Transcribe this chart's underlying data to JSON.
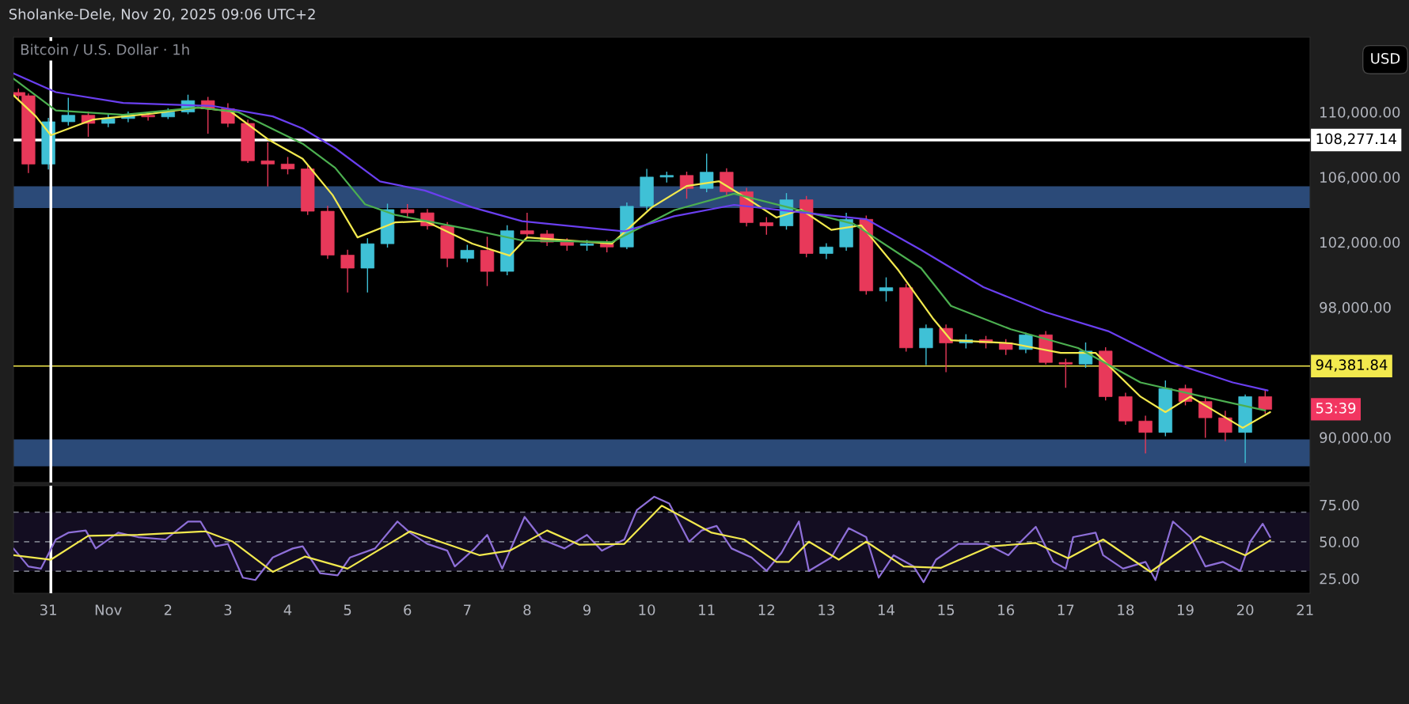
{
  "chart_data": [
    {
      "type": "candlestick",
      "title": "Bitcoin / U.S. Dollar · 1h",
      "subtitle": "Sholanke-Dele, Nov 20, 2025 09:06 UTC+2",
      "x": [
        "2025-10-30T12:00",
        "2025-10-30T16:00",
        "2025-10-31T00:00",
        "2025-10-31T08:00",
        "2025-10-31T16:00",
        "2025-11-01T00:00",
        "2025-11-01T08:00",
        "2025-11-01T16:00",
        "2025-11-02T00:00",
        "2025-11-02T08:00",
        "2025-11-02T16:00",
        "2025-11-03T00:00",
        "2025-11-03T08:00",
        "2025-11-03T16:00",
        "2025-11-04T00:00",
        "2025-11-04T08:00",
        "2025-11-04T16:00",
        "2025-11-05T00:00",
        "2025-11-05T08:00",
        "2025-11-05T16:00",
        "2025-11-06T00:00",
        "2025-11-06T08:00",
        "2025-11-06T16:00",
        "2025-11-07T00:00",
        "2025-11-07T08:00",
        "2025-11-07T16:00",
        "2025-11-08T00:00",
        "2025-11-08T08:00",
        "2025-11-08T16:00",
        "2025-11-09T00:00",
        "2025-11-09T08:00",
        "2025-11-09T16:00",
        "2025-11-10T00:00",
        "2025-11-10T08:00",
        "2025-11-10T16:00",
        "2025-11-11T00:00",
        "2025-11-11T08:00",
        "2025-11-11T16:00",
        "2025-11-12T00:00",
        "2025-11-12T08:00",
        "2025-11-12T16:00",
        "2025-11-13T00:00",
        "2025-11-13T08:00",
        "2025-11-13T16:00",
        "2025-11-14T00:00",
        "2025-11-14T08:00",
        "2025-11-14T16:00",
        "2025-11-15T00:00",
        "2025-11-15T08:00",
        "2025-11-15T16:00",
        "2025-11-16T00:00",
        "2025-11-16T08:00",
        "2025-11-16T16:00",
        "2025-11-17T00:00",
        "2025-11-17T08:00",
        "2025-11-17T16:00",
        "2025-11-18T00:00",
        "2025-11-18T08:00",
        "2025-11-18T16:00",
        "2025-11-19T00:00",
        "2025-11-19T08:00",
        "2025-11-19T16:00",
        "2025-11-20T00:00",
        "2025-11-20T08:00"
      ],
      "ohlc": [
        [
          111200,
          111400,
          110700,
          111000
        ],
        [
          111000,
          111100,
          106280,
          106800
        ],
        [
          106800,
          109600,
          106500,
          109400
        ],
        [
          109400,
          110850,
          109200,
          109800
        ],
        [
          109800,
          110000,
          108510,
          109300
        ],
        [
          109300,
          109800,
          109100,
          109600
        ],
        [
          109600,
          110000,
          109400,
          109800
        ],
        [
          109800,
          110000,
          109500,
          109700
        ],
        [
          109700,
          110200,
          109600,
          110000
        ],
        [
          110000,
          111030,
          109900,
          110700
        ],
        [
          110700,
          110900,
          108700,
          110200
        ],
        [
          110200,
          110500,
          109100,
          109300
        ],
        [
          109300,
          109500,
          106900,
          107000
        ],
        [
          107000,
          108100,
          105450,
          106800
        ],
        [
          106800,
          107200,
          106200,
          106500
        ],
        [
          106500,
          106700,
          103700,
          103900
        ],
        [
          103900,
          104200,
          101000,
          101200
        ],
        [
          101200,
          101500,
          98940,
          100400
        ],
        [
          100400,
          102200,
          98940,
          101900
        ],
        [
          101900,
          104330,
          101700,
          104000
        ],
        [
          104000,
          104300,
          103500,
          103800
        ],
        [
          103800,
          104000,
          102800,
          103000
        ],
        [
          103000,
          103200,
          100500,
          101000
        ],
        [
          101000,
          101800,
          100800,
          101500
        ],
        [
          101500,
          102300,
          99330,
          100200
        ],
        [
          100200,
          103000,
          100000,
          102700
        ],
        [
          102700,
          103770,
          102300,
          102500
        ],
        [
          102500,
          102700,
          101800,
          102000
        ],
        [
          102000,
          102200,
          101500,
          101800
        ],
        [
          101800,
          102100,
          101500,
          101900
        ],
        [
          101900,
          102100,
          101400,
          101700
        ],
        [
          101700,
          104400,
          101600,
          104200
        ],
        [
          104200,
          106470,
          104000,
          106000
        ],
        [
          106000,
          106300,
          105700,
          106100
        ],
        [
          106100,
          106300,
          104700,
          105300
        ],
        [
          105300,
          107400,
          105100,
          106300
        ],
        [
          106300,
          106500,
          104900,
          105100
        ],
        [
          105100,
          105300,
          103000,
          103200
        ],
        [
          103200,
          103500,
          102490,
          103000
        ],
        [
          103000,
          104980,
          102800,
          104600
        ],
        [
          104600,
          104800,
          101100,
          101300
        ],
        [
          101300,
          101900,
          100990,
          101700
        ],
        [
          101700,
          103770,
          101500,
          103400
        ],
        [
          103400,
          103600,
          98800,
          99000
        ],
        [
          99000,
          99800,
          98380,
          99200
        ],
        [
          99200,
          99400,
          95300,
          95500
        ],
        [
          95500,
          96900,
          94470,
          96700
        ],
        [
          96700,
          96900,
          94040,
          95800
        ],
        [
          95800,
          96300,
          95500,
          96000
        ],
        [
          96000,
          96200,
          95500,
          95800
        ],
        [
          95800,
          96000,
          95100,
          95400
        ],
        [
          95400,
          96400,
          95200,
          96300
        ],
        [
          96300,
          96500,
          94500,
          94600
        ],
        [
          94600,
          94800,
          93080,
          94500
        ],
        [
          94500,
          95800,
          94300,
          95300
        ],
        [
          95300,
          95500,
          92300,
          92500
        ],
        [
          92500,
          92700,
          90800,
          91000
        ],
        [
          91000,
          91300,
          89040,
          90300
        ],
        [
          90300,
          93460,
          90100,
          93000
        ],
        [
          93000,
          93200,
          92000,
          92200
        ],
        [
          92200,
          92400,
          90000,
          91200
        ],
        [
          91200,
          91600,
          89800,
          90300
        ],
        [
          90300,
          92600,
          88460,
          92500
        ],
        [
          92500,
          92880,
          91500,
          91720
        ]
      ],
      "series": [
        {
          "type": "line",
          "color": "#f2e94e",
          "x": [
            "2025-10-30T10:00",
            "2025-10-30T19:00",
            "2025-10-31T01:00",
            "2025-10-31T18:00",
            "2025-11-01T18:00",
            "2025-11-02T12:00",
            "2025-11-03T01:00",
            "2025-11-03T16:00",
            "2025-11-04T06:00",
            "2025-11-04T18:00",
            "2025-11-05T04:00",
            "2025-11-05T19:00",
            "2025-11-06T07:00",
            "2025-11-07T02:00",
            "2025-11-07T17:00",
            "2025-11-08T00:00",
            "2025-11-09T10:00",
            "2025-11-10T02:00",
            "2025-11-10T16:00",
            "2025-11-11T05:00",
            "2025-11-11T16:00",
            "2025-11-12T04:00",
            "2025-11-12T14:00",
            "2025-11-13T02:00",
            "2025-11-13T14:00",
            "2025-11-14T05:00",
            "2025-11-14T19:00",
            "2025-11-15T02:00",
            "2025-11-16T02:00",
            "2025-11-16T22:00",
            "2025-11-17T12:00",
            "2025-11-18T06:00",
            "2025-11-18T16:00",
            "2025-11-19T02:00",
            "2025-11-19T23:00",
            "2025-11-20T10:00"
          ],
          "values": [
            111030,
            109730,
            108570,
            109540,
            109910,
            110280,
            110040,
            108330,
            107120,
            104890,
            102290,
            103210,
            103300,
            101910,
            101170,
            102290,
            101910,
            104140,
            105450,
            105740,
            104700,
            103510,
            103990,
            102750,
            103030,
            100250,
            97260,
            95970,
            95780,
            95190,
            95190,
            92500,
            91550,
            92500,
            90580,
            91550
          ]
        },
        {
          "type": "line",
          "color": "#4caf50",
          "x": [
            "2025-10-30T10:00",
            "2025-10-31T03:00",
            "2025-11-01T06:00",
            "2025-11-02T12:00",
            "2025-11-03T04:00",
            "2025-11-04T06:00",
            "2025-11-04T19:00",
            "2025-11-05T07:00",
            "2025-11-05T19:00",
            "2025-11-07T02:00",
            "2025-11-07T22:00",
            "2025-11-09T10:00",
            "2025-11-10T11:00",
            "2025-11-11T11:00",
            "2025-11-12T11:00",
            "2025-11-13T11:00",
            "2025-11-14T14:00",
            "2025-11-15T02:00",
            "2025-11-16T02:00",
            "2025-11-17T05:00",
            "2025-11-18T06:00",
            "2025-11-19T07:00",
            "2025-11-20T08:00"
          ],
          "values": [
            112050,
            110100,
            109830,
            110280,
            110000,
            108050,
            106570,
            104330,
            103680,
            102750,
            102100,
            102000,
            103960,
            104980,
            104050,
            103120,
            100400,
            98080,
            96640,
            95490,
            93370,
            92500,
            91650
          ]
        },
        {
          "type": "line",
          "color": "#6a3ff0",
          "x": [
            "2025-10-30T10:00",
            "2025-10-31T03:00",
            "2025-11-01T06:00",
            "2025-11-02T18:00",
            "2025-11-03T18:00",
            "2025-11-04T06:00",
            "2025-11-04T19:00",
            "2025-11-05T13:00",
            "2025-11-06T07:00",
            "2025-11-07T02:00",
            "2025-11-07T22:00",
            "2025-11-09T15:00",
            "2025-11-10T11:00",
            "2025-11-11T11:00",
            "2025-11-12T23:00",
            "2025-11-13T16:00",
            "2025-11-14T14:00",
            "2025-11-15T15:00",
            "2025-11-16T16:00",
            "2025-11-17T17:00",
            "2025-11-18T18:00",
            "2025-11-19T19:00",
            "2025-11-20T09:00"
          ],
          "values": [
            112370,
            111220,
            110560,
            110370,
            109730,
            108980,
            107780,
            105730,
            105170,
            104140,
            103290,
            102660,
            103590,
            104290,
            103680,
            103410,
            101520,
            99230,
            97690,
            96530,
            94620,
            93370,
            92880
          ]
        }
      ],
      "xlim": [
        "2025-10-30T10:00",
        "2025-11-21T02:00"
      ],
      "ylim": [
        87220,
        114600
      ],
      "yticks": [
        {
          "value": 90000,
          "label": "90,000.00"
        },
        {
          "value": 98000,
          "label": "98,000.00"
        },
        {
          "value": 102000,
          "label": "102,000.00"
        },
        {
          "value": 106000,
          "label": "106,000.00"
        },
        {
          "value": 110000,
          "label": "110,000.00"
        }
      ],
      "tick_labels": "y",
      "bands": [
        {
          "axis": "y",
          "from": 104100,
          "to": 105430,
          "color": "#2b4a78"
        },
        {
          "axis": "y",
          "from": 88220,
          "to": 89870,
          "color": "#2b4a78"
        }
      ],
      "ref_lines": [
        {
          "axis": "y",
          "value": 108277.14,
          "label": "108,277.14",
          "color": "#ffffff"
        },
        {
          "axis": "y",
          "value": 94381.84,
          "label": "94,381.84",
          "color": "#f2e94e"
        },
        {
          "axis": "x",
          "value": "2025-10-31T01:00",
          "color": "#ffffff"
        }
      ],
      "annotations": [
        "USD",
        "53:39"
      ]
    },
    {
      "type": "line",
      "series": [
        {
          "type": "line",
          "color": "#8e6fd8",
          "x": [
            "2025-10-30T10:00",
            "2025-10-30T16:00",
            "2025-10-30T21:00",
            "2025-10-31T03:00",
            "2025-10-31T08:00",
            "2025-10-31T15:00",
            "2025-10-31T19:00",
            "2025-11-01T04:00",
            "2025-11-01T12:00",
            "2025-11-01T23:00",
            "2025-11-02T08:00",
            "2025-11-02T13:00",
            "2025-11-02T19:00",
            "2025-11-03T00:00",
            "2025-11-03T06:00",
            "2025-11-03T11:00",
            "2025-11-03T18:00",
            "2025-11-04T02:00",
            "2025-11-04T06:00",
            "2025-11-04T13:00",
            "2025-11-04T20:00",
            "2025-11-05T01:00",
            "2025-11-05T11:00",
            "2025-11-05T20:00",
            "2025-11-06T01:00",
            "2025-11-06T08:00",
            "2025-11-06T16:00",
            "2025-11-06T19:00",
            "2025-11-07T03:00",
            "2025-11-07T08:00",
            "2025-11-07T14:00",
            "2025-11-07T23:00",
            "2025-11-08T06:00",
            "2025-11-08T15:00",
            "2025-11-09T00:00",
            "2025-11-09T06:00",
            "2025-11-09T15:00",
            "2025-11-09T20:00",
            "2025-11-10T03:00",
            "2025-11-10T09:00",
            "2025-11-10T17:00",
            "2025-11-10T22:00",
            "2025-11-11T04:00",
            "2025-11-11T10:00",
            "2025-11-11T18:00",
            "2025-11-12T00:00",
            "2025-11-12T06:00",
            "2025-11-12T13:00",
            "2025-11-12T17:00",
            "2025-11-13T02:00",
            "2025-11-13T09:00",
            "2025-11-13T16:00",
            "2025-11-13T21:00",
            "2025-11-14T03:00",
            "2025-11-14T11:00",
            "2025-11-14T15:00",
            "2025-11-14T20:00",
            "2025-11-15T05:00",
            "2025-11-15T16:00",
            "2025-11-16T01:00",
            "2025-11-16T06:00",
            "2025-11-16T12:00",
            "2025-11-16T19:00",
            "2025-11-17T00:00",
            "2025-11-17T03:00",
            "2025-11-17T12:00",
            "2025-11-17T15:00",
            "2025-11-17T23:00",
            "2025-11-18T08:00",
            "2025-11-18T12:00",
            "2025-11-18T19:00",
            "2025-11-19T02:00",
            "2025-11-19T08:00",
            "2025-11-19T15:00",
            "2025-11-19T22:00",
            "2025-11-20T02:00",
            "2025-11-20T07:00",
            "2025-11-20T10:00"
          ],
          "values": [
            45.4,
            33.2,
            31.7,
            51.5,
            56.1,
            57.6,
            45.4,
            56.1,
            53.1,
            51.5,
            63.7,
            63.7,
            46.9,
            48.5,
            25.6,
            24.0,
            39.3,
            45.4,
            46.9,
            28.6,
            27.1,
            39.3,
            45.4,
            63.7,
            56.1,
            48.5,
            43.9,
            33.2,
            45.4,
            54.6,
            31.7,
            66.8,
            51.5,
            45.4,
            54.6,
            43.9,
            51.5,
            71.4,
            80.5,
            75.9,
            50.0,
            57.6,
            60.7,
            45.4,
            39.3,
            30.2,
            42.4,
            63.7,
            30.2,
            39.3,
            59.2,
            53.1,
            25.6,
            40.8,
            33.2,
            22.5,
            37.8,
            48.5,
            48.5,
            40.8,
            50.0,
            60.1,
            36.3,
            31.7,
            53.1,
            56.1,
            40.8,
            31.7,
            36.3,
            24.0,
            63.7,
            53.1,
            33.2,
            36.3,
            30.2,
            50.0,
            62.2,
            53.1
          ]
        },
        {
          "type": "line",
          "color": "#f2e94e",
          "x": [
            "2025-10-30T10:00",
            "2025-10-31T01:00",
            "2025-10-31T16:00",
            "2025-11-01T12:00",
            "2025-11-02T15:00",
            "2025-11-03T02:00",
            "2025-11-03T18:00",
            "2025-11-04T07:00",
            "2025-11-05T00:00",
            "2025-11-06T01:00",
            "2025-11-07T05:00",
            "2025-11-07T17:00",
            "2025-11-08T08:00",
            "2025-11-08T21:00",
            "2025-11-09T15:00",
            "2025-11-10T06:00",
            "2025-11-11T02:00",
            "2025-11-11T15:00",
            "2025-11-12T04:00",
            "2025-11-12T09:00",
            "2025-11-12T17:00",
            "2025-11-13T05:00",
            "2025-11-13T16:00",
            "2025-11-14T07:00",
            "2025-11-14T22:00",
            "2025-11-15T18:00",
            "2025-11-16T12:00",
            "2025-11-17T01:00",
            "2025-11-17T15:00",
            "2025-11-18T10:00",
            "2025-11-19T06:00",
            "2025-11-20T00:00",
            "2025-11-20T10:00"
          ],
          "values": [
            40.8,
            37.8,
            54.0,
            54.6,
            57.0,
            50.0,
            29.5,
            39.9,
            31.7,
            57.0,
            40.8,
            43.9,
            57.6,
            47.9,
            48.5,
            74.4,
            56.1,
            51.5,
            36.3,
            36.3,
            50.0,
            37.8,
            50.0,
            33.2,
            32.3,
            46.9,
            49.1,
            38.7,
            51.5,
            29.5,
            53.7,
            40.8,
            50.9
          ]
        }
      ],
      "xlim": [
        "2025-10-30T10:00",
        "2025-11-21T02:00"
      ],
      "ylim": [
        15,
        88
      ],
      "xticks": [
        {
          "value": "2025-10-31",
          "label": "31"
        },
        {
          "value": "2025-11-01",
          "label": "Nov"
        },
        {
          "value": "2025-11-02",
          "label": "2"
        },
        {
          "value": "2025-11-03",
          "label": "3"
        },
        {
          "value": "2025-11-04",
          "label": "4"
        },
        {
          "value": "2025-11-05",
          "label": "5"
        },
        {
          "value": "2025-11-06",
          "label": "6"
        },
        {
          "value": "2025-11-07",
          "label": "7"
        },
        {
          "value": "2025-11-08",
          "label": "8"
        },
        {
          "value": "2025-11-09",
          "label": "9"
        },
        {
          "value": "2025-11-10",
          "label": "10"
        },
        {
          "value": "2025-11-11",
          "label": "11"
        },
        {
          "value": "2025-11-12",
          "label": "12"
        },
        {
          "value": "2025-11-13",
          "label": "13"
        },
        {
          "value": "2025-11-14",
          "label": "14"
        },
        {
          "value": "2025-11-15",
          "label": "15"
        },
        {
          "value": "2025-11-16",
          "label": "16"
        },
        {
          "value": "2025-11-17",
          "label": "17"
        },
        {
          "value": "2025-11-18",
          "label": "18"
        },
        {
          "value": "2025-11-19",
          "label": "19"
        },
        {
          "value": "2025-11-20",
          "label": "20"
        },
        {
          "value": "2025-11-21",
          "label": "21"
        }
      ],
      "yticks": [
        {
          "value": 25,
          "label": "25.00"
        },
        {
          "value": 50,
          "label": "50.00"
        },
        {
          "value": 75,
          "label": "75.00"
        }
      ],
      "bands": [
        {
          "axis": "y",
          "from": 30,
          "to": 70,
          "color": "#130d21"
        }
      ],
      "ref_lines": [
        {
          "axis": "y",
          "value": 70,
          "color": "#787b86",
          "line_style": "dashed"
        },
        {
          "axis": "y",
          "value": 50,
          "color": "#787b86",
          "line_style": "dashed"
        },
        {
          "axis": "y",
          "value": 30,
          "color": "#787b86",
          "line_style": "dashed"
        },
        {
          "axis": "x",
          "value": "2025-10-31T01:00",
          "color": "#ffffff"
        }
      ]
    }
  ]
}
